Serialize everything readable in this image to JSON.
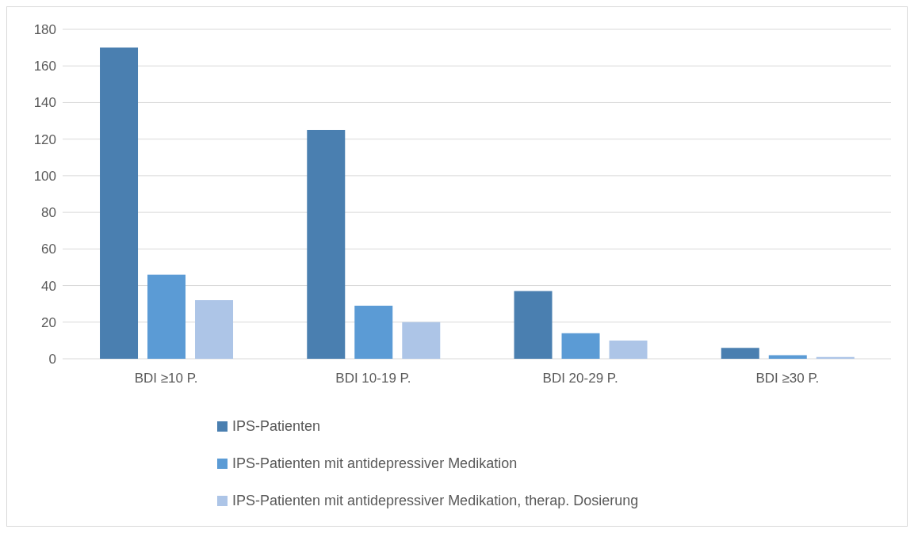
{
  "chart_data": {
    "type": "bar",
    "categories": [
      "BDI ≥10 P.",
      "BDI 10-19 P.",
      "BDI 20-29 P.",
      "BDI ≥30 P."
    ],
    "series": [
      {
        "name": "IPS-Patienten",
        "color": "#4a7fb0",
        "values": [
          170,
          125,
          37,
          6
        ]
      },
      {
        "name": "IPS-Patienten mit antidepressiver Medikation",
        "color": "#5b9bd5",
        "values": [
          46,
          29,
          14,
          2
        ]
      },
      {
        "name": "IPS-Patienten mit antidepressiver Medikation, therap. Dosierung",
        "color": "#adc5e7",
        "values": [
          32,
          20,
          10,
          1
        ]
      }
    ],
    "ylim": [
      0,
      180
    ],
    "yticks": [
      0,
      20,
      40,
      60,
      80,
      100,
      120,
      140,
      160,
      180
    ],
    "grid": "y",
    "legend": "bottom"
  }
}
